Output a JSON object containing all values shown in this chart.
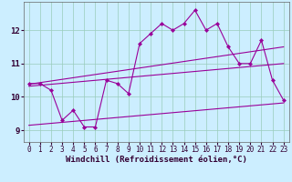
{
  "xlabel": "Windchill (Refroidissement éolien,°C)",
  "bg_color": "#cceeff",
  "line_color": "#990099",
  "xlim": [
    -0.5,
    23.5
  ],
  "ylim": [
    8.65,
    12.85
  ],
  "xticks": [
    0,
    1,
    2,
    3,
    4,
    5,
    6,
    7,
    8,
    9,
    10,
    11,
    12,
    13,
    14,
    15,
    16,
    17,
    18,
    19,
    20,
    21,
    22,
    23
  ],
  "yticks": [
    9,
    10,
    11,
    12
  ],
  "main_data": {
    "x": [
      0,
      1,
      2,
      3,
      4,
      5,
      6,
      7,
      8,
      9,
      10,
      11,
      12,
      13,
      14,
      15,
      16,
      17,
      18,
      19,
      20,
      21,
      22,
      23
    ],
    "y": [
      10.4,
      10.4,
      10.2,
      9.3,
      9.6,
      9.1,
      9.1,
      10.5,
      10.4,
      10.1,
      11.6,
      11.9,
      12.2,
      12.0,
      12.2,
      12.6,
      12.0,
      12.2,
      11.5,
      11.0,
      11.0,
      11.7,
      10.5,
      9.9
    ]
  },
  "trend_upper": {
    "x": [
      0,
      23
    ],
    "y": [
      10.38,
      11.5
    ]
  },
  "trend_middle": {
    "x": [
      0,
      23
    ],
    "y": [
      10.32,
      11.0
    ]
  },
  "trend_lower": {
    "x": [
      0,
      23
    ],
    "y": [
      9.15,
      9.82
    ]
  },
  "grid_color": "#99ccbb",
  "tick_fontsize": 5.5,
  "label_fontsize": 6.5
}
